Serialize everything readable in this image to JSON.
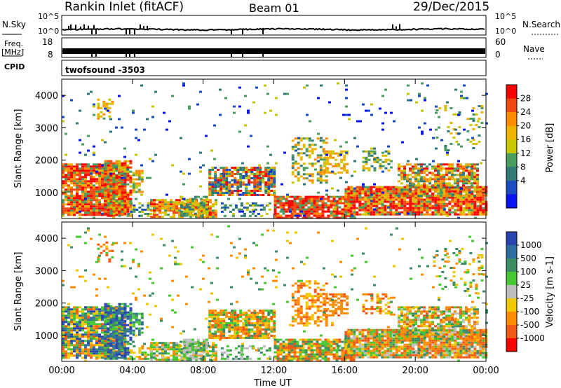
{
  "header": {
    "title": "Rankin Inlet (fitACF)",
    "beam": "Beam 01",
    "date": "29/Dec/2015"
  },
  "strips": {
    "noise_left_label": "N.Sky",
    "noise_right_label": "N.Search",
    "noise_left_ticks": [
      "10^5",
      "10^0"
    ],
    "noise_right_ticks": [
      "10^5",
      "10^0"
    ],
    "freq_left_label_1": "Freq.",
    "freq_left_label_2": "[MHz]",
    "freq_left_ticks": [
      "18",
      "8"
    ],
    "freq_right_label": "Nave",
    "freq_right_ticks": [
      "60",
      "0"
    ],
    "cpid_label": "CPID",
    "cpid_value": "twofsound -3503"
  },
  "chart_data": [
    {
      "type": "heatmap",
      "title": "",
      "ylabel": "Slant Range [km]",
      "xlabel": "",
      "xlim": [
        "00:00",
        "24:00"
      ],
      "ylim": [
        200,
        4500
      ],
      "x_ticks": [
        "00:00",
        "04:00",
        "08:00",
        "12:00",
        "16:00",
        "20:00",
        "00:00"
      ],
      "y_ticks": [
        1000,
        2000,
        3000,
        4000
      ],
      "colorbar": {
        "label": "Power [dB]",
        "ticks": [
          "28",
          "24",
          "20",
          "16",
          "12",
          "8",
          "4"
        ],
        "colors": [
          "#ff0000",
          "#f04810",
          "#ff8c00",
          "#f0b400",
          "#c8c800",
          "#4a9d5c",
          "#327a78",
          "#1a4dc2",
          "#0a14f0"
        ]
      }
    },
    {
      "type": "heatmap",
      "title": "",
      "ylabel": "Velocity [m s^-1]",
      "ylabel_left": "Slant Range [km]",
      "xlabel": "Time UT",
      "xlim": [
        "00:00",
        "24:00"
      ],
      "ylim": [
        200,
        4500
      ],
      "x_ticks": [
        "00:00",
        "04:00",
        "08:00",
        "12:00",
        "16:00",
        "20:00",
        "00:00"
      ],
      "y_ticks": [
        1000,
        2000,
        3000,
        4000
      ],
      "colorbar": {
        "label": "Velocity [m s-1]",
        "ticks": [
          "1000",
          "500",
          "100",
          "25",
          "-25",
          "-100",
          "-500",
          "-1000"
        ],
        "colors": [
          "#2845b0",
          "#2f6ea0",
          "#3c8c64",
          "#46c832",
          "#bebebe",
          "#f0c800",
          "#ff8c00",
          "#f05a14",
          "#ff0000"
        ]
      }
    }
  ]
}
